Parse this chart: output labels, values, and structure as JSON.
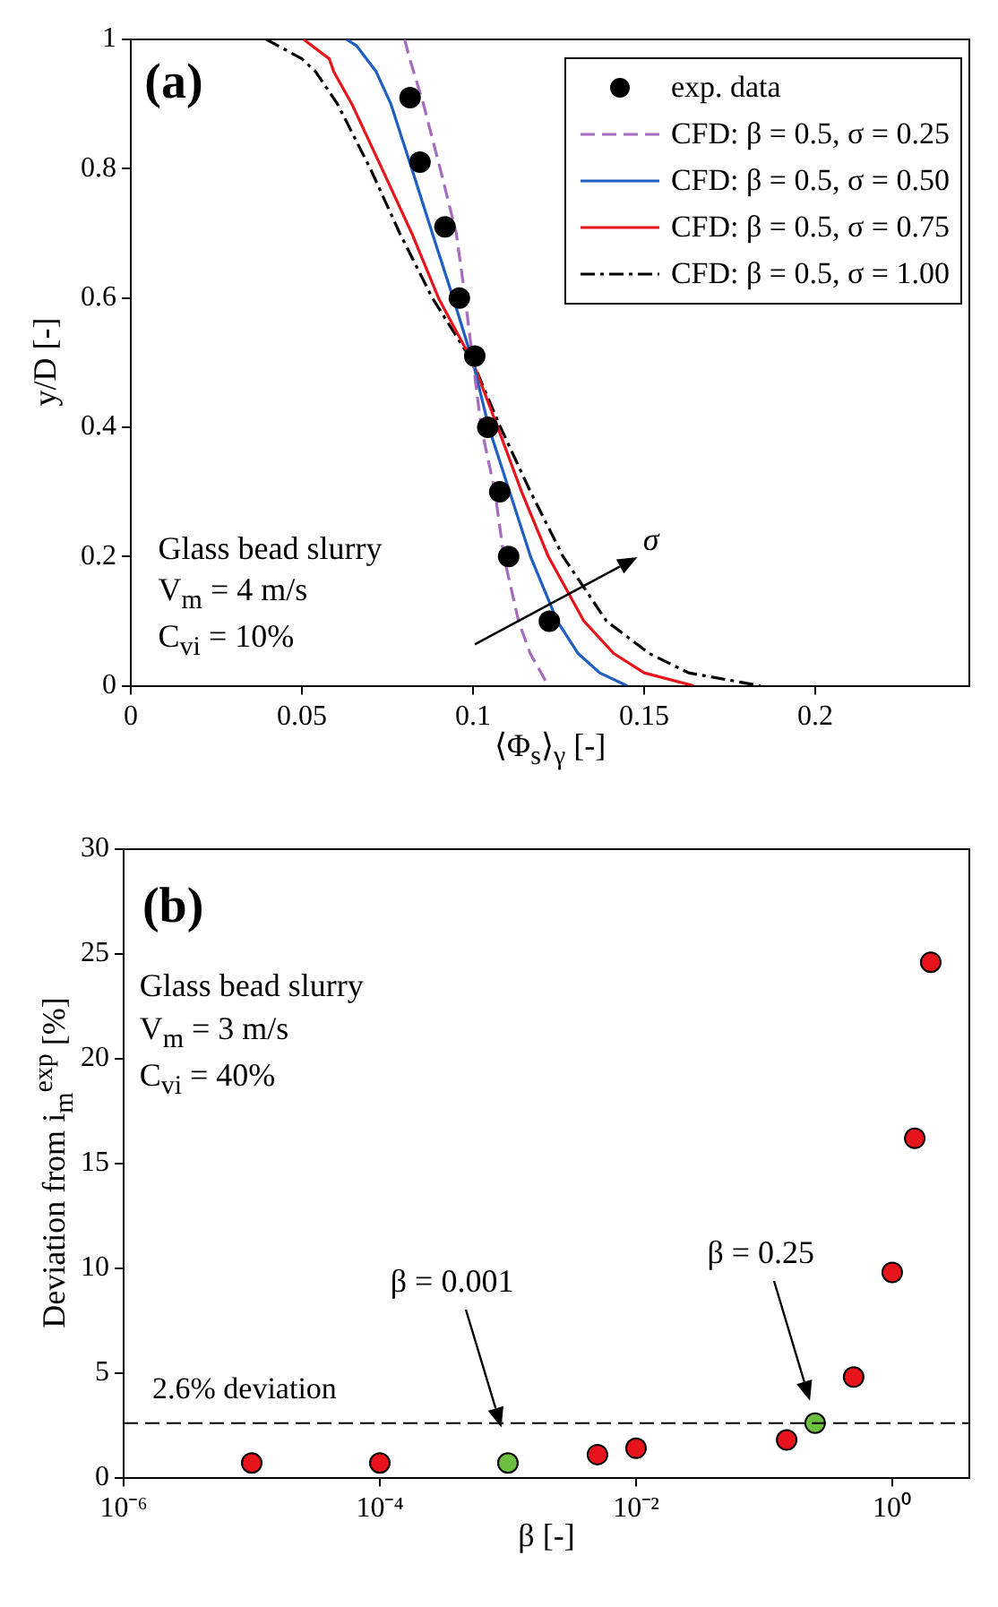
{
  "chart_data": [
    {
      "type": "line",
      "xlabel": "⟨Φ$_{s}$⟩$_{γ}$ [-]",
      "ylabel": "y/D [-]",
      "xlim": [
        0,
        0.245
      ],
      "ylim": [
        0,
        1
      ],
      "xticks": [
        0,
        0.05,
        0.1,
        0.15,
        0.2
      ],
      "yticks": [
        0,
        0.2,
        0.4,
        0.6,
        0.8,
        1
      ],
      "grid": false,
      "legend": "top right",
      "annotations": [
        "(a)",
        "Glass bead slurry",
        "V$_{m}$ = 4 m/s",
        "C$_{vi}$ = 10%",
        "σ"
      ],
      "series": [
        {
          "name": "exp. data",
          "type": "scatter",
          "marker": "circle",
          "color": "#000000",
          "x": [
            0.0816,
            0.0845,
            0.0918,
            0.096,
            0.1005,
            0.1043,
            0.1078,
            0.1104,
            0.1223
          ],
          "values": [
            0.91,
            0.81,
            0.71,
            0.6,
            0.51,
            0.4,
            0.3,
            0.2,
            0.1
          ]
        },
        {
          "name": "CFD: β = 0.5, σ = 0.25",
          "line_style": "dashed",
          "color": "#a66bbe",
          "x": [
            0.08,
            0.0815,
            0.0855,
            0.0904,
            0.0951,
            0.0977,
            0.1,
            0.1024,
            0.1064,
            0.109,
            0.1133,
            0.1167,
            0.122
          ],
          "values": [
            1,
            0.97,
            0.9,
            0.8,
            0.7,
            0.6,
            0.5,
            0.4,
            0.3,
            0.2,
            0.1,
            0.05,
            0
          ]
        },
        {
          "name": "CFD: β = 0.5, σ = 0.50",
          "line_style": "solid",
          "color": "#1f5fbf",
          "x": [
            0.063,
            0.066,
            0.0717,
            0.076,
            0.0821,
            0.0881,
            0.0942,
            0.1,
            0.1046,
            0.1107,
            0.1168,
            0.1246,
            0.1307,
            0.137,
            0.145
          ],
          "values": [
            1,
            0.99,
            0.95,
            0.9,
            0.8,
            0.7,
            0.6,
            0.5,
            0.4,
            0.3,
            0.2,
            0.1,
            0.05,
            0.02,
            0
          ]
        },
        {
          "name": "CFD: β = 0.5, σ = 0.75",
          "line_style": "solid",
          "color": "#e8141b",
          "x": [
            0.0505,
            0.058,
            0.0593,
            0.0646,
            0.0734,
            0.0821,
            0.0899,
            0.1,
            0.1072,
            0.1142,
            0.122,
            0.1324,
            0.1411,
            0.15,
            0.1645
          ],
          "values": [
            1,
            0.97,
            0.95,
            0.9,
            0.8,
            0.7,
            0.6,
            0.5,
            0.4,
            0.3,
            0.2,
            0.1,
            0.05,
            0.02,
            0
          ]
        },
        {
          "name": "CFD: β = 0.5, σ = 1.00",
          "line_style": "dotted",
          "color": "#000000",
          "x": [
            0.0396,
            0.05,
            0.054,
            0.0604,
            0.07,
            0.0786,
            0.0881,
            0.1,
            0.108,
            0.1168,
            0.1263,
            0.139,
            0.1515,
            0.163,
            0.184
          ],
          "values": [
            1,
            0.97,
            0.95,
            0.9,
            0.8,
            0.7,
            0.6,
            0.5,
            0.4,
            0.3,
            0.2,
            0.1,
            0.05,
            0.02,
            0
          ]
        }
      ]
    },
    {
      "type": "scatter",
      "xlabel": "β [-]",
      "ylabel": "Deviation from i$_{m}$$^{exp}$ [%]",
      "log": "x",
      "xlim": [
        1e-06,
        4
      ],
      "ylim": [
        0,
        30
      ],
      "xticks": [
        {
          "value": 1e-06,
          "label": "10⁻⁶"
        },
        {
          "value": 0.0001,
          "label": "10⁻⁴"
        },
        {
          "value": 0.01,
          "label": "10⁻²"
        },
        {
          "value": 1,
          "label": "10⁰"
        }
      ],
      "yticks": [
        0,
        5,
        10,
        15,
        20,
        25,
        30
      ],
      "grid": false,
      "legend": false,
      "marker": "circle",
      "annotations": [
        "(b)",
        "Glass bead slurry",
        "V$_{m}$ = 3 m/s",
        "C$_{vi}$ = 40%",
        "β = 0.001",
        "β = 0.25"
      ],
      "ref_lines": [
        {
          "axis": "y",
          "value": 2.6,
          "label": "2.6% deviation",
          "line_style": "dashed",
          "color": "#000000"
        }
      ],
      "series": [
        {
          "color": "#e8141b",
          "x": [
            1e-05,
            0.0001,
            0.005,
            0.01,
            0.15,
            0.5,
            1,
            1.5,
            2
          ],
          "values": [
            0.7,
            0.7,
            1.1,
            1.4,
            1.8,
            4.8,
            9.8,
            16.2,
            24.6
          ]
        },
        {
          "color": "#6cbf3f",
          "x": [
            0.001,
            0.25
          ],
          "values": [
            0.7,
            2.6
          ]
        }
      ]
    }
  ]
}
